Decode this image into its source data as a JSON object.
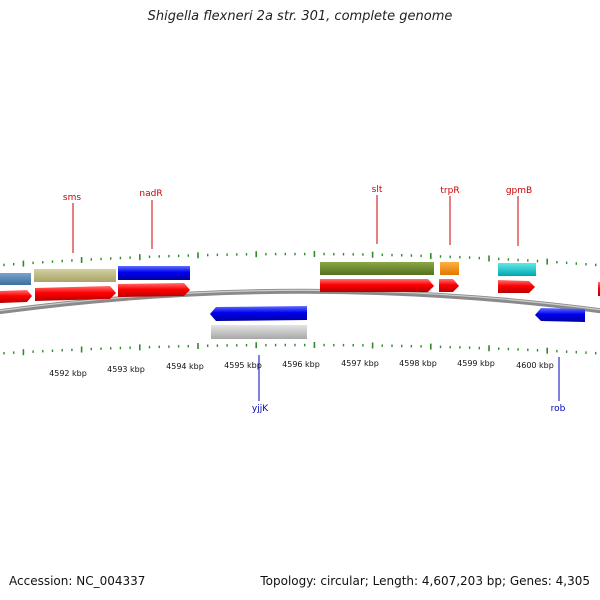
{
  "title": "Shigella flexneri 2a str. 301, complete genome",
  "footer": {
    "accession": "Accession: NC_004337",
    "summary": "Topology: circular; Length: 4,607,203 bp; Genes: 4,305"
  },
  "colors": {
    "forward_label": "#cc0000",
    "reverse_label": "#0000bb",
    "tick": "#2e8b2e",
    "backbone": "#888888"
  },
  "kbp_labels": [
    "4592 kbp",
    "4593 kbp",
    "4594 kbp",
    "4595 kbp",
    "4596 kbp",
    "4597 kbp",
    "4598 kbp",
    "4599 kbp",
    "4600 kbp"
  ],
  "gene_labels": {
    "forward": [
      "sms",
      "nadR",
      "slt",
      "trpR",
      "gpmB"
    ],
    "reverse": [
      "yjjK",
      "rob"
    ]
  }
}
